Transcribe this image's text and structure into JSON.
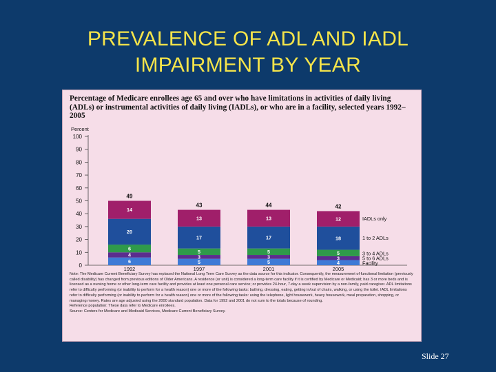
{
  "slide": {
    "title_line1": "PREVALENCE OF ADL AND IADL",
    "title_line2": "IMPAIRMENT BY YEAR",
    "slide_number": "Slide 27"
  },
  "colors": {
    "background": "#0d3a6b",
    "title": "#f5e44a",
    "figure_bg": "#f6dde8",
    "iadl_only": "#a01f6a",
    "one_to_two_adls": "#1f4f9c",
    "three_to_four_adls": "#2f9a4a",
    "five_to_six_adls": "#5b2d8e",
    "facility": "#3e7ad6"
  },
  "figure": {
    "title": "Percentage of Medicare enrollees age 65 and over who have limitations in activities of daily living (ADLs) or instrumental activities of daily living (IADLs), or who are in a facility, selected years 1992–2005",
    "note": "Note: The Medicare Current Beneficiary Survey has replaced the National Long Term Care Survey as the data source for this indicator. Consequently, the measurement of functional limitation (previously called disability) has changed from previous editions of Older Americans. A residence (or unit) is considered a long-term care facility if it is certified by Medicare or Medicaid; has 3 or more beds and is licensed as a nursing home or other long-term care facility and provides at least one personal care service; or provides 24-hour, 7-day a week supervision by a non-family, paid caregiver. ADL limitations refer to difficulty performing (or inability to perform for a health reason) one or more of the following tasks: bathing, dressing, eating, getting in/out of chairs, walking, or using the toilet. IADL limitations refer to difficulty performing (or inability to perform for a health reason) one or more of the following tasks: using the telephone, light housework, heavy housework, meal preparation, shopping, or managing money. Rates are age adjusted using the 2000 standard population. Data for 1992 and 2001 do not sum to the totals because of rounding.",
    "reference": "Reference population: These data refer to Medicare enrollees.",
    "source": "Source: Centers for Medicare and Medicaid Services, Medicare Current Beneficiary Survey."
  },
  "chart_data": {
    "type": "bar",
    "stacked": true,
    "title": "Percentage of Medicare enrollees age 65 and over who have limitations in activities of daily living (ADLs) or instrumental activities of daily living (IADLs), or who are in a facility, selected years 1992–2005",
    "ylabel": "Percent",
    "xlabel": "",
    "ylim": [
      0,
      100
    ],
    "yticks": [
      0,
      10,
      20,
      30,
      40,
      50,
      60,
      70,
      80,
      90,
      100
    ],
    "categories": [
      "1992",
      "1997",
      "2001",
      "2005"
    ],
    "totals": [
      49,
      43,
      44,
      42
    ],
    "series": [
      {
        "name": "Facility",
        "values": [
          6,
          5,
          5,
          4
        ],
        "color": "#3e7ad6"
      },
      {
        "name": "5 to 6 ADLs",
        "values": [
          4,
          3,
          3,
          3
        ],
        "color": "#5b2d8e"
      },
      {
        "name": "3 to 4 ADLs",
        "values": [
          6,
          5,
          5,
          5
        ],
        "color": "#2f9a4a"
      },
      {
        "name": "1 to 2 ADLs",
        "values": [
          20,
          17,
          17,
          18
        ],
        "color": "#1f4f9c"
      },
      {
        "name": "IADLs only",
        "values": [
          14,
          13,
          13,
          12
        ],
        "color": "#a01f6a"
      }
    ],
    "legend_position": "right"
  }
}
